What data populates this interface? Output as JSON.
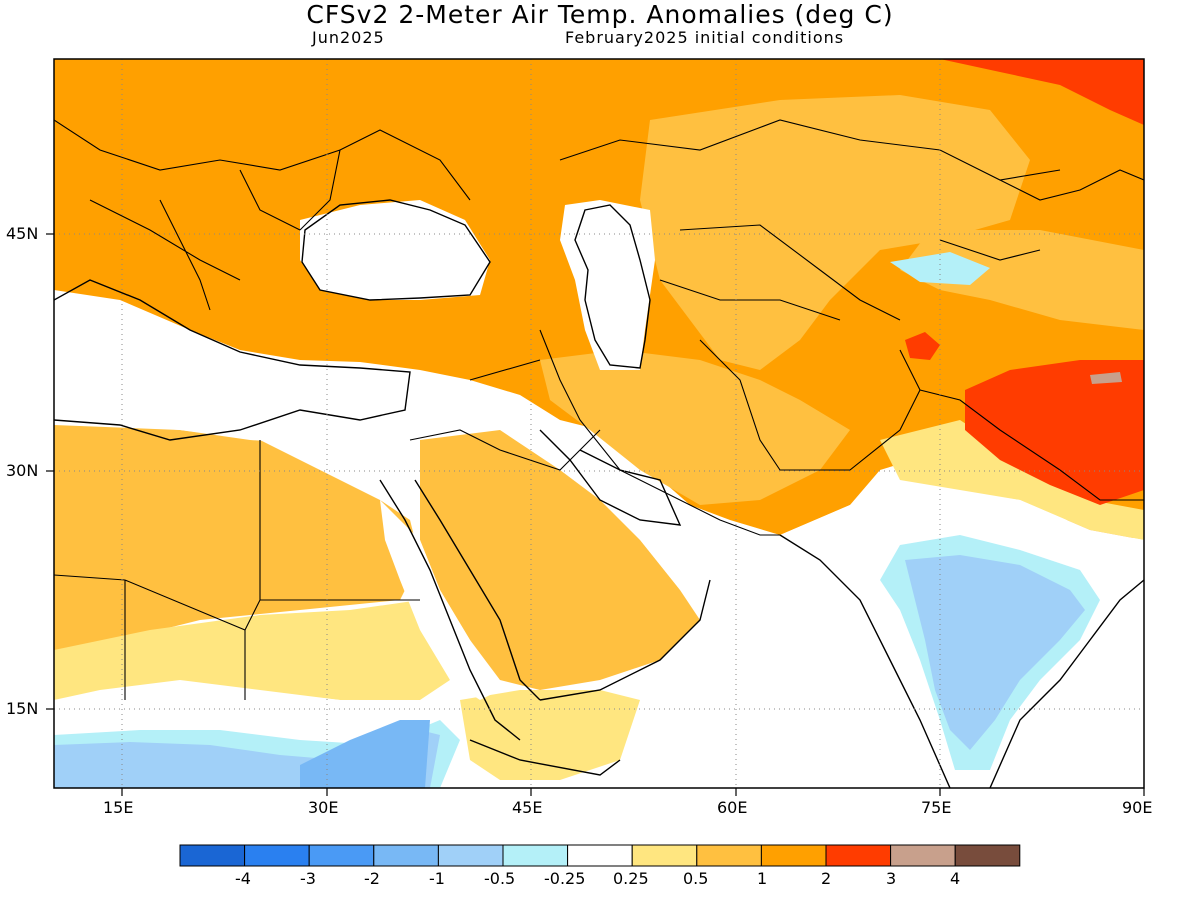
{
  "header": {
    "title": "CFSv2 2-Meter Air Temp. Anomalies (deg C)",
    "month": "Jun2025",
    "init": "February2025 initial conditions"
  },
  "map": {
    "lon_range": [
      10,
      90
    ],
    "lat_range": [
      9,
      55
    ],
    "lon_ticks": [
      "15E",
      "30E",
      "45E",
      "60E",
      "75E",
      "90E"
    ],
    "lon_tick_values": [
      15,
      30,
      45,
      60,
      75,
      90
    ],
    "lat_ticks": [
      "45N",
      "30N",
      "15N"
    ],
    "lat_tick_values": [
      45,
      30,
      15
    ],
    "gridlines": "dotted"
  },
  "colorbar": {
    "labels": [
      "-4",
      "-3",
      "-2",
      "-1",
      "-0.5",
      "-0.25",
      "0.25",
      "0.5",
      "1",
      "2",
      "3",
      "4"
    ],
    "colors": [
      "#1a66d4",
      "#2a80f0",
      "#4a9af5",
      "#78b8f5",
      "#a0d0f8",
      "#b4f0f8",
      "#ffffff",
      "#ffe680",
      "#ffc040",
      "#ffa000",
      "#ff3c00",
      "#c8a08c",
      "#784c3c"
    ]
  }
}
